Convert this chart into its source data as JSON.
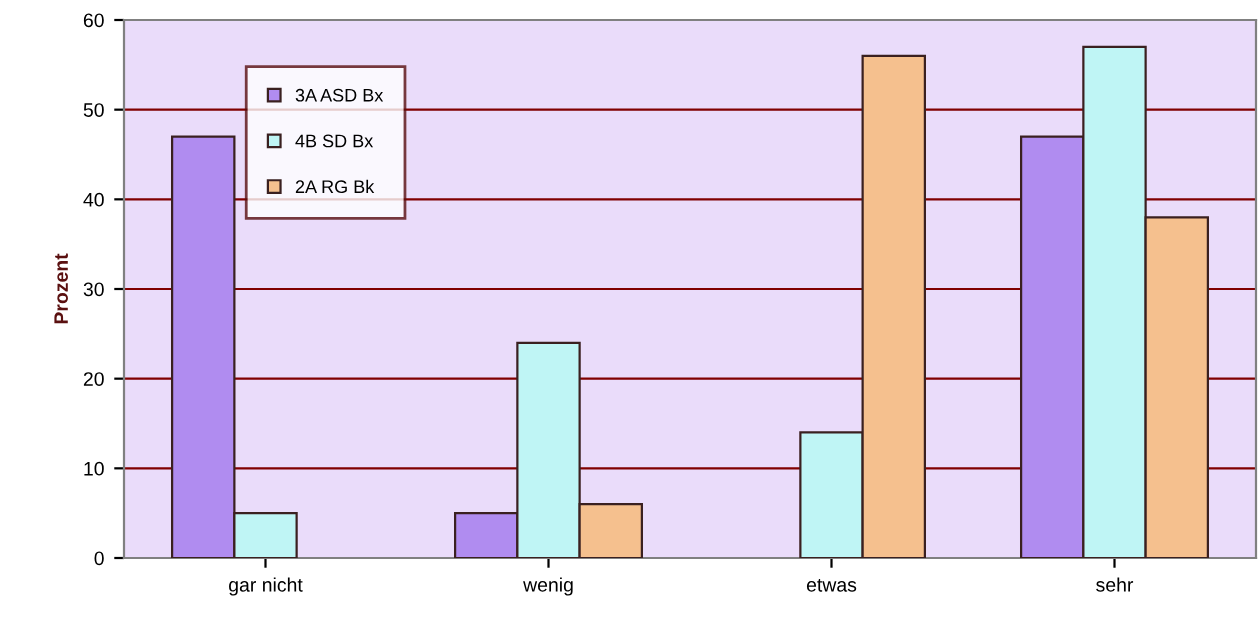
{
  "chart_data": {
    "type": "bar",
    "ylabel": "Prozent",
    "categories": [
      "gar nicht",
      "wenig",
      "etwas",
      "sehr"
    ],
    "series": [
      {
        "name": "3A ASD Bx",
        "color": "#b08cf0",
        "values": [
          47,
          5,
          null,
          47
        ]
      },
      {
        "name": "4B SD Bx",
        "color": "#bff5f5",
        "values": [
          5,
          24,
          14,
          57
        ]
      },
      {
        "name": "2A RG Bk",
        "color": "#f5c08e",
        "values": [
          null,
          6,
          56,
          38
        ]
      }
    ],
    "ylim": [
      0,
      60
    ],
    "yticks": [
      0,
      10,
      20,
      30,
      40,
      50,
      60
    ],
    "grid": "y",
    "legend": "top left"
  }
}
